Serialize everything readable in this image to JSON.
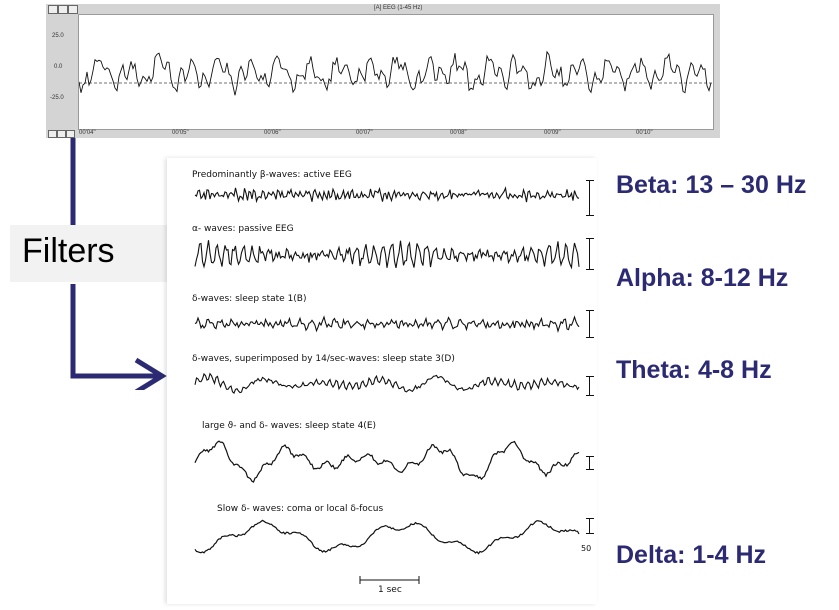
{
  "eeg_panel": {
    "title": "[A] EEG (1-45 Hz)",
    "y_ticks": [
      "25.0",
      "0.0",
      "-25.0"
    ],
    "x_ticks": [
      "00'04\"",
      "00'05\"",
      "00'06\"",
      "00'07\"",
      "00'08\"",
      "00'09\"",
      "00'10\""
    ]
  },
  "filters_label": "Filters",
  "traces": [
    {
      "caption": "Predominantly β-waves: active EEG"
    },
    {
      "caption": "α- waves: passive EEG"
    },
    {
      "caption": "δ-waves: sleep state 1(B)"
    },
    {
      "caption": "δ-waves, superimposed by 14/sec-waves: sleep state 3(D)"
    },
    {
      "caption": "large ϑ- and δ- waves: sleep state 4(E)"
    },
    {
      "caption": "Slow δ- waves: coma or local δ-focus"
    }
  ],
  "scale_unit": "50",
  "time_scale_label": "1 sec",
  "bands": [
    {
      "label": "Beta: 13 – 30 Hz"
    },
    {
      "label": "Alpha: 8-12 Hz"
    },
    {
      "label": "Theta: 4-8 Hz"
    },
    {
      "label": "Delta: 1-4 Hz"
    }
  ],
  "colors": {
    "arrow": "#2b2a73",
    "band_text": "#2b2a73"
  }
}
